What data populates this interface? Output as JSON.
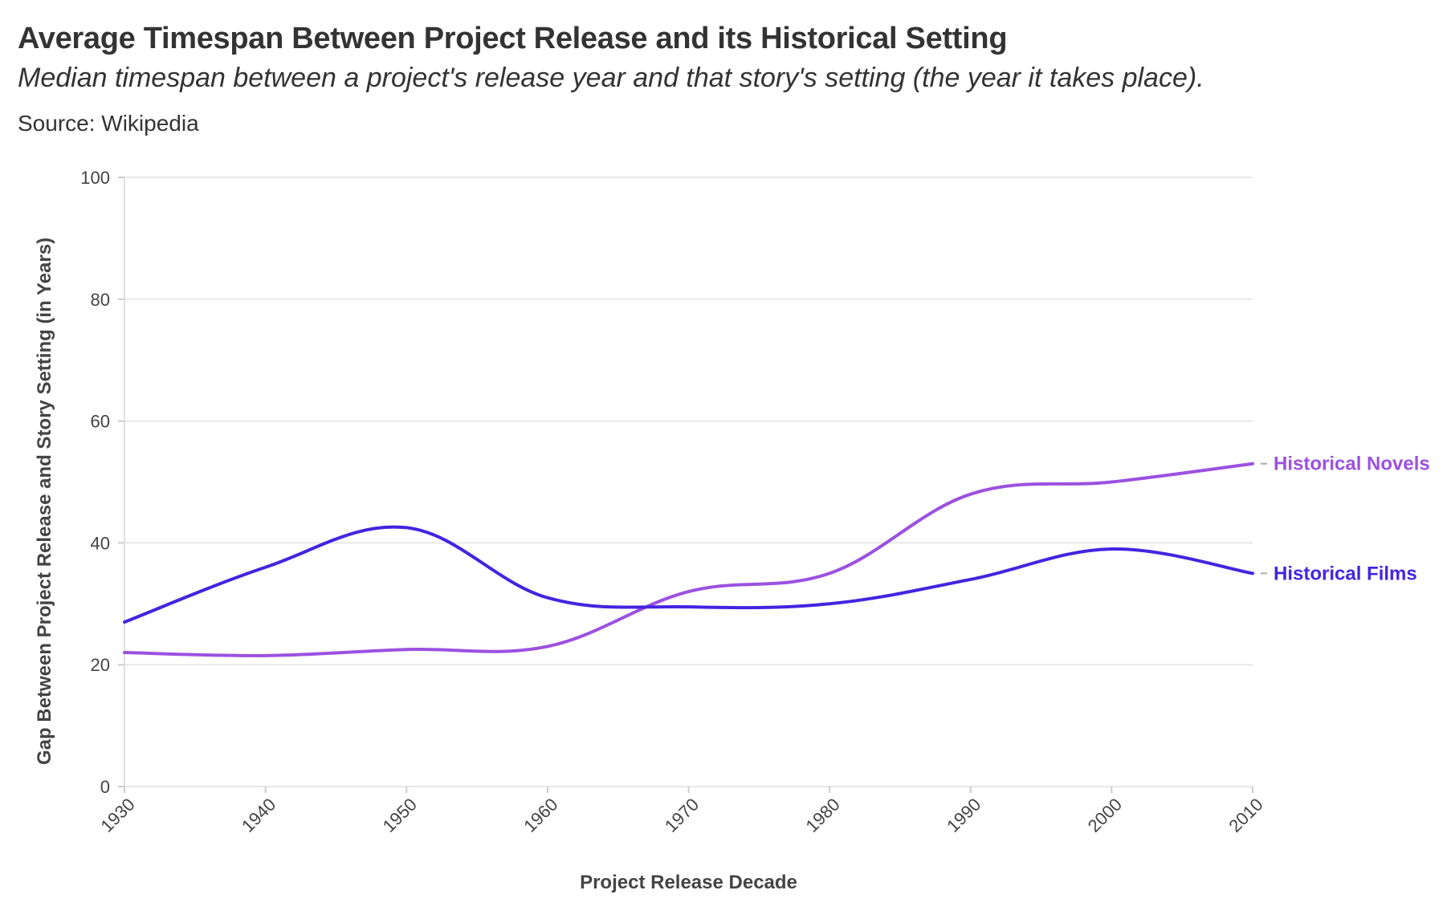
{
  "header": {
    "title": "Average Timespan Between Project Release and its Historical Setting",
    "subtitle": "Median timespan between a project's release year and that story's setting (the year it takes place).",
    "source": "Source: Wikipedia"
  },
  "chart_data": {
    "type": "line",
    "xlabel": "Project Release Decade",
    "ylabel": "Gap Between Project Release and Story Setting (in Years)",
    "x": [
      1930,
      1940,
      1950,
      1960,
      1970,
      1980,
      1990,
      2000,
      2010
    ],
    "xlim": [
      1930,
      2010
    ],
    "ylim": [
      0,
      100
    ],
    "y_ticks": [
      0,
      20,
      40,
      60,
      80,
      100
    ],
    "grid": true,
    "legend": "inline-right",
    "series": [
      {
        "name": "Historical Novels",
        "color": "#9b51e0",
        "values": [
          22,
          21.5,
          22.5,
          23,
          32,
          35,
          48,
          50,
          53
        ]
      },
      {
        "name": "Historical Films",
        "color": "#4424e0",
        "values": [
          27,
          36,
          42.5,
          31,
          29.5,
          30,
          34,
          39,
          35
        ]
      }
    ]
  }
}
